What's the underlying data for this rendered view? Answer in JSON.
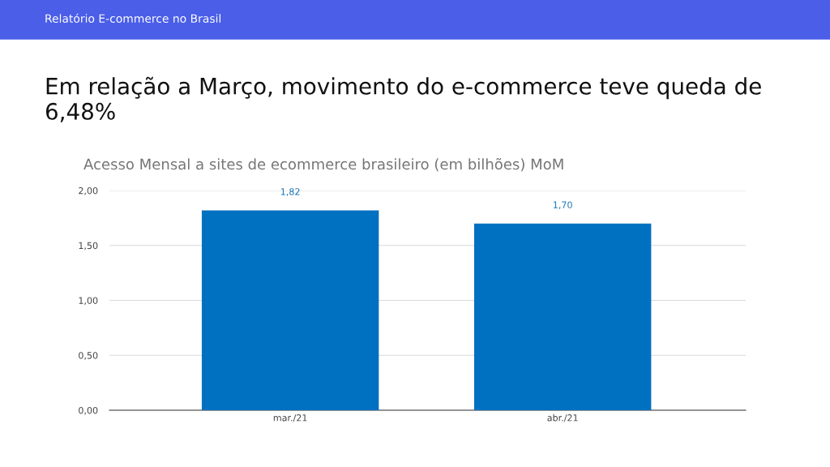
{
  "chart_data": {
    "type": "bar",
    "title": "Em relação a Março, movimento do e-commerce teve queda de 6,48%",
    "subtitle": "Acesso Mensal a sites de ecommerce brasileiro (em bilhões) MoM",
    "annotations": [
      "Relatório E-commerce no Brasil"
    ],
    "categories": [
      "mar./21",
      "abr./21"
    ],
    "values": [
      1.82,
      1.7
    ],
    "value_labels": [
      "1,82",
      "1,70"
    ],
    "color": "#0070c0",
    "ylim": [
      0,
      2
    ],
    "yticks": [
      {
        "value": 0,
        "label": "0,00"
      },
      {
        "value": 0.5,
        "label": "0,50"
      },
      {
        "value": 1,
        "label": "1,00"
      },
      {
        "value": 1.5,
        "label": "1,50"
      },
      {
        "value": 2,
        "label": "2,00"
      }
    ],
    "grid": "y",
    "legend": false
  }
}
